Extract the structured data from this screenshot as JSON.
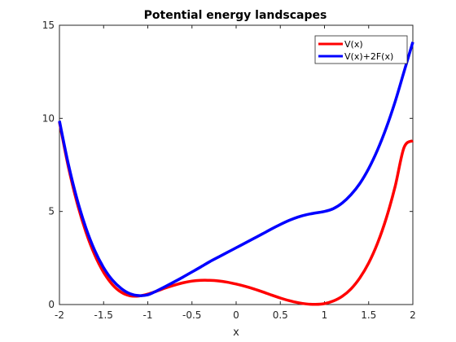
{
  "chart_data": {
    "type": "line",
    "title": "Potential energy landscapes",
    "xlabel": "x",
    "ylabel": "",
    "xlim": [
      -2,
      2
    ],
    "ylim": [
      0,
      15
    ],
    "x_ticks": [
      -2,
      -1.5,
      -1,
      -0.5,
      0,
      0.5,
      1,
      1.5,
      2
    ],
    "x_tick_labels": [
      "-2",
      "-1.5",
      "-1",
      "-0.5",
      "0",
      "0.5",
      "1",
      "1.5",
      "2"
    ],
    "y_ticks": [
      0,
      5,
      10,
      15
    ],
    "y_tick_labels": [
      "0",
      "5",
      "10",
      "15"
    ],
    "grid": false,
    "legend_position": "top-right",
    "x": [
      -2,
      -1.9,
      -1.8,
      -1.7,
      -1.6,
      -1.5,
      -1.4,
      -1.3,
      -1.2,
      -1.1,
      -1.0,
      -0.9,
      -0.8,
      -0.7,
      -0.6,
      -0.5,
      -0.4,
      -0.3,
      -0.2,
      -0.1,
      0,
      0.1,
      0.2,
      0.3,
      0.4,
      0.5,
      0.6,
      0.7,
      0.8,
      0.9,
      1.0,
      1.1,
      1.2,
      1.3,
      1.4,
      1.5,
      1.6,
      1.7,
      1.8,
      1.9,
      2.0
    ],
    "series": [
      {
        "name": "V(x)",
        "color": "#ff0000",
        "values": [
          9.8,
          7.42,
          5.46,
          3.89,
          2.66,
          1.73,
          1.07,
          0.66,
          0.47,
          0.46,
          0.56,
          0.72,
          0.89,
          1.04,
          1.17,
          1.26,
          1.3,
          1.3,
          1.27,
          1.2,
          1.1,
          0.98,
          0.84,
          0.68,
          0.51,
          0.35,
          0.21,
          0.1,
          0.03,
          0.01,
          0.05,
          0.19,
          0.44,
          0.84,
          1.43,
          2.23,
          3.29,
          4.65,
          6.35,
          8.43,
          8.8
        ]
      },
      {
        "name": "V(x)+2F(x)",
        "color": "#0000ff",
        "values": [
          9.86,
          7.56,
          5.65,
          4.11,
          2.9,
          1.98,
          1.31,
          0.86,
          0.58,
          0.48,
          0.52,
          0.73,
          0.97,
          1.22,
          1.48,
          1.75,
          2.02,
          2.3,
          2.55,
          2.8,
          3.05,
          3.3,
          3.55,
          3.8,
          4.06,
          4.3,
          4.52,
          4.7,
          4.83,
          4.92,
          5.0,
          5.15,
          5.45,
          5.9,
          6.5,
          7.3,
          8.3,
          9.5,
          10.9,
          12.5,
          14.1
        ]
      }
    ]
  }
}
